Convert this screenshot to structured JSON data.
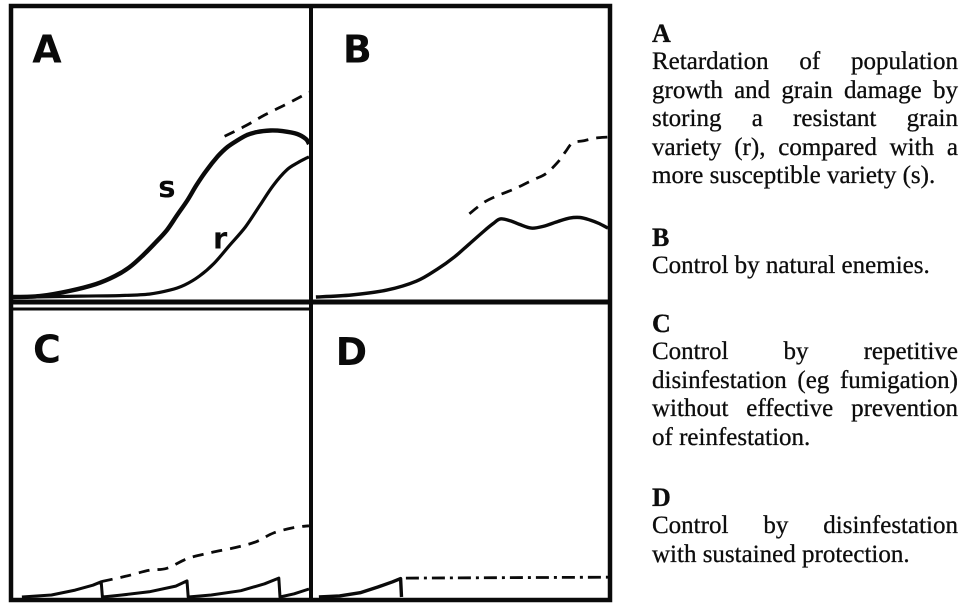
{
  "page": {
    "background": "#ffffff",
    "ink_color": "#0a0a0a"
  },
  "chart_data": [
    {
      "type": "line",
      "panel": "A",
      "title": "A",
      "xlabel": "",
      "ylabel": "",
      "xlim": [
        0,
        100
      ],
      "ylim": [
        0,
        100
      ],
      "grid": false,
      "note": "hand-drawn qualitative sketch; axes unlabeled",
      "label_pos": {
        "x": 11.5,
        "y": 87
      },
      "series": [
        {
          "name": "s (susceptible variety)",
          "line_style": "solid",
          "smooth": true,
          "width": 4.4,
          "points": [
            [
              0,
              0
            ],
            [
              9,
              0.3
            ],
            [
              19,
              2.1
            ],
            [
              28,
              4.5
            ],
            [
              34.5,
              7.3
            ],
            [
              39.5,
              10.5
            ],
            [
              44,
              14.6
            ],
            [
              48,
              18.8
            ],
            [
              52,
              23.3
            ],
            [
              55.5,
              28.6
            ],
            [
              59,
              33.8
            ],
            [
              62,
              39
            ],
            [
              65.5,
              44.3
            ],
            [
              69,
              48.8
            ],
            [
              72.5,
              52.3
            ],
            [
              76,
              54.7
            ],
            [
              79,
              56.4
            ],
            [
              82.5,
              57.5
            ],
            [
              87,
              58
            ],
            [
              91,
              57.8
            ],
            [
              96,
              56.8
            ],
            [
              99,
              55
            ],
            [
              100,
              53.3
            ]
          ]
        },
        {
          "name": "s dashed continuation",
          "line_style": "dashed",
          "smooth": true,
          "width": 2.8,
          "points": [
            [
              71.5,
              56
            ],
            [
              78.5,
              59.6
            ],
            [
              85,
              63.4
            ],
            [
              92,
              67
            ],
            [
              97,
              69.7
            ],
            [
              100,
              71.4
            ]
          ]
        },
        {
          "name": "r (resistant variety)",
          "line_style": "solid",
          "smooth": true,
          "width": 3.2,
          "points": [
            [
              6,
              0
            ],
            [
              23,
              0.3
            ],
            [
              36,
              0.5
            ],
            [
              46,
              1
            ],
            [
              53,
              2.4
            ],
            [
              58,
              4.2
            ],
            [
              63,
              7.3
            ],
            [
              68,
              11.8
            ],
            [
              73,
              17.8
            ],
            [
              78.5,
              24.4
            ],
            [
              83.5,
              32.1
            ],
            [
              88,
              39
            ],
            [
              92.5,
              44.3
            ],
            [
              96,
              46.7
            ],
            [
              98.5,
              48.1
            ],
            [
              100,
              48.8
            ]
          ]
        }
      ],
      "annotations": [
        {
          "text": "s",
          "x": 52,
          "y": 38
        },
        {
          "text": "r",
          "x": 70,
          "y": 20
        }
      ]
    },
    {
      "type": "line",
      "panel": "B",
      "title": "B",
      "xlabel": "",
      "ylabel": "",
      "xlim": [
        0,
        100
      ],
      "ylim": [
        0,
        100
      ],
      "grid": false,
      "note": "hand-drawn qualitative sketch; axes unlabeled",
      "label_pos": {
        "x": 15,
        "y": 87
      },
      "series": [
        {
          "name": "population with natural enemies (solid)",
          "line_style": "solid",
          "smooth": true,
          "width": 3.4,
          "points": [
            [
              1,
              0
            ],
            [
              13,
              0.7
            ],
            [
              25,
              2.4
            ],
            [
              35,
              5.5
            ],
            [
              42,
              9.6
            ],
            [
              48,
              14
            ],
            [
              53,
              18.5
            ],
            [
              58,
              23
            ],
            [
              61,
              25.5
            ],
            [
              63.5,
              27.2
            ],
            [
              67,
              26.5
            ],
            [
              70,
              25.3
            ],
            [
              74,
              24
            ],
            [
              78,
              24.6
            ],
            [
              83,
              26.3
            ],
            [
              87,
              27.5
            ],
            [
              90.5,
              27.7
            ],
            [
              94,
              26.8
            ],
            [
              97,
              25.6
            ],
            [
              100,
              24
            ]
          ]
        },
        {
          "name": "uncontrolled dashed continuation",
          "line_style": "dashed",
          "smooth": true,
          "width": 2.8,
          "points": [
            [
              53,
              29
            ],
            [
              58,
              33
            ],
            [
              63,
              35.5
            ],
            [
              67.5,
              37.3
            ],
            [
              71,
              39
            ],
            [
              75,
              41
            ],
            [
              79,
              43
            ],
            [
              83,
              47
            ],
            [
              85.5,
              50.5
            ],
            [
              88,
              53.7
            ],
            [
              91.5,
              54.4
            ],
            [
              96,
              55.4
            ],
            [
              100,
              55.7
            ]
          ]
        }
      ],
      "annotations": []
    },
    {
      "type": "line",
      "panel": "C",
      "title": "C",
      "xlabel": "",
      "ylabel": "",
      "xlim": [
        0,
        100
      ],
      "ylim": [
        0,
        100
      ],
      "grid": false,
      "note": "hand-drawn qualitative sketch; axes unlabeled",
      "label_pos": {
        "x": 11.5,
        "y": 87
      },
      "series": [
        {
          "name": "population sawtooth with repeated disinfestation (solid)",
          "line_style": "solid",
          "smooth": false,
          "width": 3,
          "points": [
            [
              3,
              0
            ],
            [
              13,
              0.7
            ],
            [
              21,
              2.4
            ],
            [
              27,
              4.1
            ],
            [
              29.8,
              5.3
            ],
            [
              30.2,
              0
            ],
            [
              36,
              0.6
            ],
            [
              46,
              1.8
            ],
            [
              55,
              3.8
            ],
            [
              58.8,
              5.6
            ],
            [
              59.2,
              0
            ],
            [
              67,
              0.7
            ],
            [
              77,
              2.2
            ],
            [
              85,
              4.6
            ],
            [
              89.8,
              6.6
            ],
            [
              90.2,
              0
            ],
            [
              95,
              1.1
            ],
            [
              100,
              2.8
            ]
          ]
        },
        {
          "name": "rising dashed damage curve",
          "line_style": "dashed",
          "smooth": true,
          "width": 2.8,
          "points": [
            [
              30,
              5.4
            ],
            [
              38,
              7.2
            ],
            [
              46,
              9.3
            ],
            [
              52,
              10
            ],
            [
              59,
              13.4
            ],
            [
              67,
              15.5
            ],
            [
              75,
              17.2
            ],
            [
              82,
              19.2
            ],
            [
              88,
              22.3
            ],
            [
              95,
              24.2
            ],
            [
              100,
              24.8
            ]
          ]
        }
      ],
      "annotations": []
    },
    {
      "type": "line",
      "panel": "D",
      "title": "D",
      "xlabel": "",
      "ylabel": "",
      "xlim": [
        0,
        100
      ],
      "ylim": [
        0,
        100
      ],
      "grid": false,
      "note": "hand-drawn qualitative sketch; axes unlabeled",
      "label_pos": {
        "x": 13,
        "y": 86
      },
      "series": [
        {
          "name": "population until disinfestation (solid)",
          "line_style": "solid",
          "smooth": false,
          "width": 3.4,
          "points": [
            [
              2,
              0
            ],
            [
              9,
              0.4
            ],
            [
              16,
              1.5
            ],
            [
              22,
              3.5
            ],
            [
              27,
              5.3
            ],
            [
              29.7,
              6.4
            ],
            [
              30,
              0
            ]
          ]
        },
        {
          "name": "flat dash-dot line after sustained protection",
          "line_style": "dashdot",
          "smooth": false,
          "width": 2.8,
          "points": [
            [
              31.5,
              6.6
            ],
            [
              100,
              6.9
            ]
          ]
        }
      ],
      "annotations": []
    }
  ],
  "legend": {
    "entries": [
      {
        "label": "A",
        "lines": [
          "Retardation of population",
          "growth and grain damage by",
          "storing a resistant grain",
          "variety (r), compared with a",
          "more susceptible variety (s)."
        ]
      },
      {
        "label": "B",
        "lines": [
          "Control by natural enemies."
        ]
      },
      {
        "label": "C",
        "lines": [
          "Control by repetitive",
          "disinfestation (eg fumigation)",
          "without effective prevention",
          "of reinfestation."
        ]
      },
      {
        "label": "D",
        "lines": [
          "Control by disinfestation",
          "with sustained protection."
        ]
      }
    ]
  }
}
